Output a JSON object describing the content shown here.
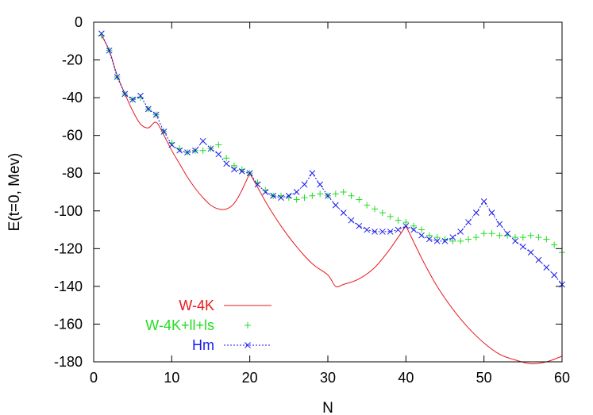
{
  "chart_data": {
    "type": "line",
    "title": "",
    "xlabel": "N",
    "ylabel": "E(t=0, Mev)",
    "xlim": [
      0,
      60
    ],
    "ylim": [
      -180,
      0
    ],
    "xticks": [
      0,
      10,
      20,
      30,
      40,
      50,
      60
    ],
    "yticks": [
      0,
      -20,
      -40,
      -60,
      -80,
      -100,
      -120,
      -140,
      -160,
      -180
    ],
    "grid": false,
    "legend_position": "bottom-left",
    "series": [
      {
        "name": "W-4K",
        "style": "solid-line",
        "color": "#e8191e",
        "points": [
          [
            1,
            -7
          ],
          [
            2,
            -15
          ],
          [
            3,
            -28
          ],
          [
            4,
            -38
          ],
          [
            5,
            -47
          ],
          [
            6,
            -54
          ],
          [
            7,
            -56
          ],
          [
            8,
            -53
          ],
          [
            9,
            -60
          ],
          [
            10,
            -68
          ],
          [
            11,
            -75
          ],
          [
            12,
            -82
          ],
          [
            13,
            -88
          ],
          [
            14,
            -93
          ],
          [
            15,
            -97
          ],
          [
            16,
            -99
          ],
          [
            17,
            -99
          ],
          [
            18,
            -96
          ],
          [
            19,
            -89
          ],
          [
            20,
            -80
          ],
          [
            22,
            -95
          ],
          [
            24,
            -108
          ],
          [
            26,
            -119
          ],
          [
            28,
            -128
          ],
          [
            30,
            -134
          ],
          [
            31,
            -140
          ],
          [
            32,
            -139
          ],
          [
            34,
            -136
          ],
          [
            36,
            -130
          ],
          [
            38,
            -120
          ],
          [
            40,
            -108
          ],
          [
            42,
            -125
          ],
          [
            44,
            -140
          ],
          [
            46,
            -152
          ],
          [
            48,
            -162
          ],
          [
            50,
            -170
          ],
          [
            52,
            -176
          ],
          [
            54,
            -179
          ],
          [
            56,
            -181
          ],
          [
            58,
            -180
          ],
          [
            60,
            -177
          ]
        ]
      },
      {
        "name": "W-4K+ll+ls",
        "style": "plus-markers",
        "color": "#22dd22",
        "points": [
          [
            1,
            -7
          ],
          [
            2,
            -15
          ],
          [
            3,
            -29
          ],
          [
            4,
            -38
          ],
          [
            5,
            -41
          ],
          [
            6,
            -40
          ],
          [
            7,
            -46
          ],
          [
            8,
            -49
          ],
          [
            9,
            -58
          ],
          [
            10,
            -64
          ],
          [
            11,
            -67
          ],
          [
            12,
            -69
          ],
          [
            13,
            -68
          ],
          [
            14,
            -68
          ],
          [
            15,
            -67
          ],
          [
            16,
            -65
          ],
          [
            17,
            -72
          ],
          [
            18,
            -76
          ],
          [
            19,
            -78
          ],
          [
            20,
            -80
          ],
          [
            21,
            -85
          ],
          [
            22,
            -89
          ],
          [
            23,
            -92
          ],
          [
            24,
            -92
          ],
          [
            25,
            -93
          ],
          [
            26,
            -94
          ],
          [
            27,
            -93
          ],
          [
            28,
            -92
          ],
          [
            29,
            -91
          ],
          [
            30,
            -92
          ],
          [
            31,
            -91
          ],
          [
            32,
            -90
          ],
          [
            33,
            -92
          ],
          [
            34,
            -94
          ],
          [
            35,
            -97
          ],
          [
            36,
            -99
          ],
          [
            37,
            -101
          ],
          [
            38,
            -103
          ],
          [
            39,
            -105
          ],
          [
            40,
            -106
          ],
          [
            41,
            -108
          ],
          [
            42,
            -110
          ],
          [
            43,
            -113
          ],
          [
            44,
            -114
          ],
          [
            45,
            -115
          ],
          [
            46,
            -116
          ],
          [
            47,
            -116
          ],
          [
            48,
            -115
          ],
          [
            49,
            -114
          ],
          [
            50,
            -112
          ],
          [
            51,
            -112
          ],
          [
            52,
            -113
          ],
          [
            53,
            -113
          ],
          [
            54,
            -114
          ],
          [
            55,
            -114
          ],
          [
            56,
            -113
          ],
          [
            57,
            -114
          ],
          [
            58,
            -115
          ],
          [
            59,
            -118
          ],
          [
            60,
            -122
          ]
        ]
      },
      {
        "name": "Hm",
        "style": "dotted-line-x-markers",
        "color": "#1a1aee",
        "points": [
          [
            1,
            -6
          ],
          [
            2,
            -15
          ],
          [
            3,
            -29
          ],
          [
            4,
            -38
          ],
          [
            5,
            -41
          ],
          [
            6,
            -39
          ],
          [
            7,
            -46
          ],
          [
            8,
            -49
          ],
          [
            9,
            -58
          ],
          [
            10,
            -65
          ],
          [
            11,
            -68
          ],
          [
            12,
            -69
          ],
          [
            13,
            -68
          ],
          [
            14,
            -63
          ],
          [
            15,
            -67
          ],
          [
            16,
            -70
          ],
          [
            17,
            -75
          ],
          [
            18,
            -78
          ],
          [
            19,
            -79
          ],
          [
            20,
            -80
          ],
          [
            21,
            -86
          ],
          [
            22,
            -90
          ],
          [
            23,
            -92
          ],
          [
            24,
            -93
          ],
          [
            25,
            -92
          ],
          [
            26,
            -90
          ],
          [
            27,
            -86
          ],
          [
            28,
            -80
          ],
          [
            29,
            -86
          ],
          [
            30,
            -92
          ],
          [
            31,
            -97
          ],
          [
            32,
            -101
          ],
          [
            33,
            -105
          ],
          [
            34,
            -108
          ],
          [
            35,
            -110
          ],
          [
            36,
            -111
          ],
          [
            37,
            -111
          ],
          [
            38,
            -111
          ],
          [
            39,
            -110
          ],
          [
            40,
            -108
          ],
          [
            41,
            -110
          ],
          [
            42,
            -113
          ],
          [
            43,
            -115
          ],
          [
            44,
            -116
          ],
          [
            45,
            -116
          ],
          [
            46,
            -114
          ],
          [
            47,
            -111
          ],
          [
            48,
            -106
          ],
          [
            49,
            -101
          ],
          [
            50,
            -95
          ],
          [
            51,
            -101
          ],
          [
            52,
            -107
          ],
          [
            53,
            -112
          ],
          [
            54,
            -116
          ],
          [
            55,
            -119
          ],
          [
            56,
            -122
          ],
          [
            57,
            -126
          ],
          [
            58,
            -130
          ],
          [
            59,
            -134
          ],
          [
            60,
            -139
          ]
        ]
      }
    ]
  }
}
